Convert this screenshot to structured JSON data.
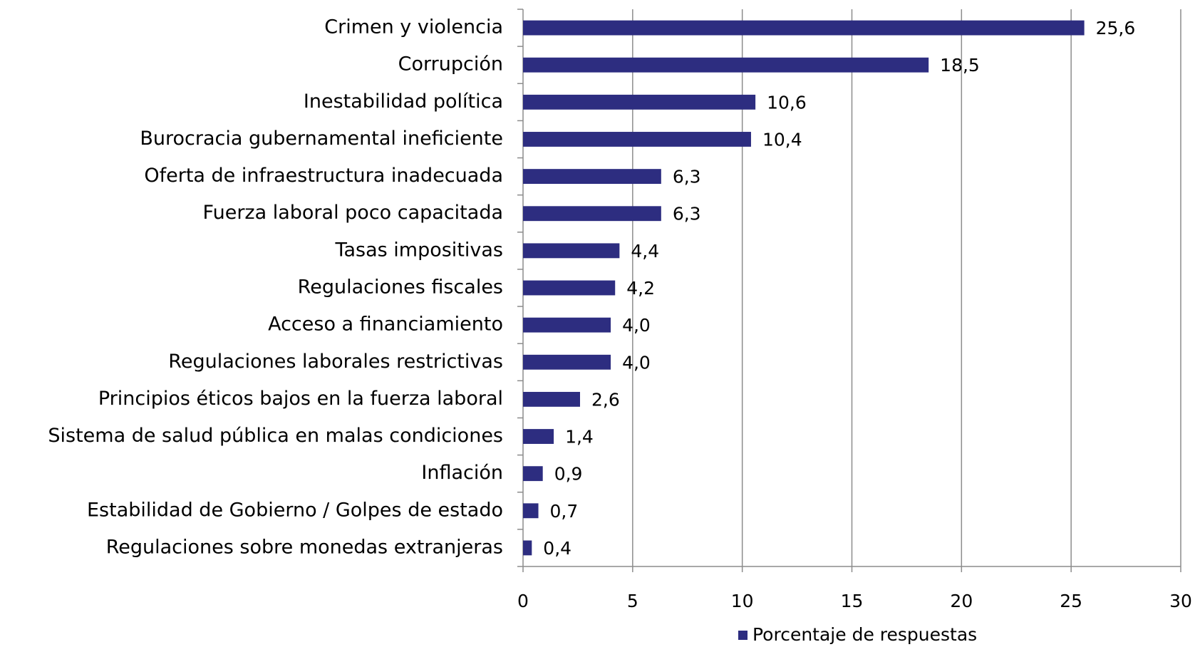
{
  "chart_data": {
    "type": "bar",
    "orientation": "horizontal",
    "categories": [
      "Crimen y violencia",
      "Corrupción",
      "Inestabilidad política",
      "Burocracia gubernamental ineficiente",
      "Oferta de infraestructura inadecuada",
      "Fuerza laboral poco capacitada",
      "Tasas impositivas",
      "Regulaciones fiscales",
      "Acceso a financiamiento",
      "Regulaciones laborales restrictivas",
      "Principios éticos bajos en la fuerza laboral",
      "Sistema de salud pública en malas condiciones",
      "Inflación",
      "Estabilidad de Gobierno / Golpes de estado",
      "Regulaciones sobre monedas extranjeras"
    ],
    "series": [
      {
        "name": "Porcentaje de respuestas",
        "color": "#2d2d80",
        "values": [
          25.6,
          18.5,
          10.6,
          10.4,
          6.3,
          6.3,
          4.4,
          4.2,
          4.0,
          4.0,
          2.6,
          1.4,
          0.9,
          0.7,
          0.4
        ],
        "value_labels": [
          "25,6",
          "18,5",
          "10,6",
          "10,4",
          "6,3",
          "6,3",
          "4,4",
          "4,2",
          "4,0",
          "4,0",
          "2,6",
          "1,4",
          "0,9",
          "0,7",
          "0,4"
        ]
      }
    ],
    "xlim": [
      0,
      30
    ],
    "xticks": [
      0,
      5,
      10,
      15,
      20,
      25,
      30
    ],
    "grid": true,
    "legend": "bottom"
  }
}
